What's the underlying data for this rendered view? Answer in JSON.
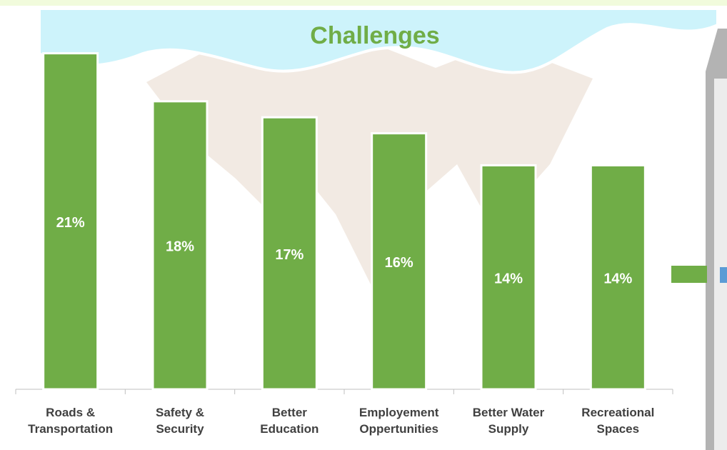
{
  "chart_data": {
    "type": "bar",
    "title": "Challenges",
    "categories": [
      "Roads & Transportation",
      "Safety & Security",
      "Better Education",
      "Employement Oppertunities",
      "Better Water Supply",
      "Recreational Spaces"
    ],
    "values": [
      21,
      18,
      17,
      16,
      14,
      14
    ],
    "value_labels": [
      "21%",
      "18%",
      "17%",
      "16%",
      "14%",
      "14%"
    ],
    "color": "#70ad47"
  }
}
